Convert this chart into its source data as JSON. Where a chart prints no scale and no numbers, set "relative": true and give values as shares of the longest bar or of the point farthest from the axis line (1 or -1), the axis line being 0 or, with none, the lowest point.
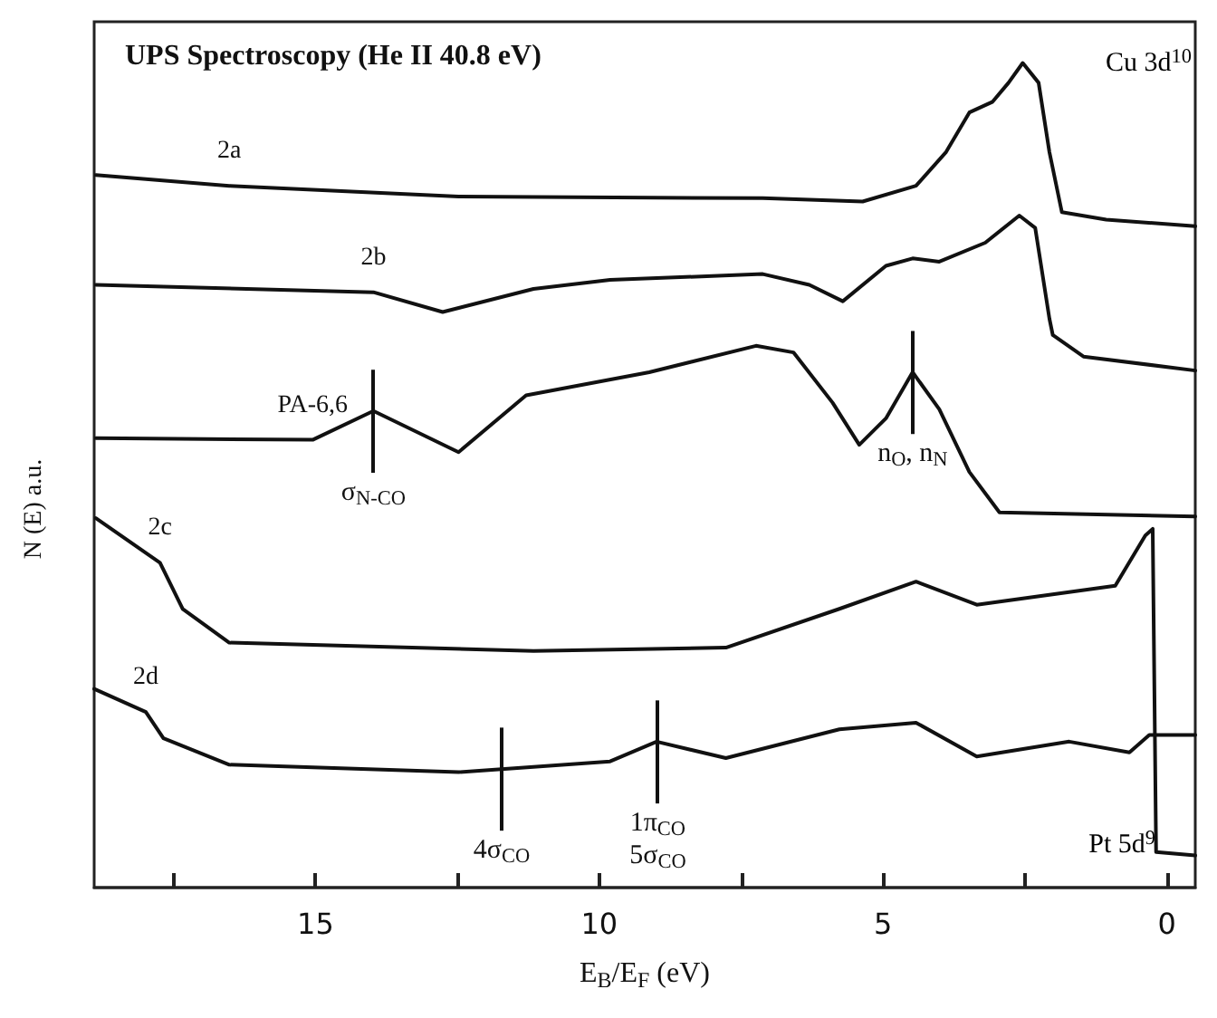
{
  "chart_data": {
    "type": "line",
    "relative": true,
    "title": "UPS Spectroscopy (He II 40.8 eV)",
    "xlabel": "E$_{B}$/E$_{F}$ (eV)",
    "ylabel": "N (E) a.u.",
    "xlim": [
      18.9,
      -0.5
    ],
    "xticks": [
      {
        "value": 17.5,
        "label": null
      },
      15,
      {
        "value": 12.5,
        "label": null
      },
      10,
      {
        "value": 7.5,
        "label": null
      },
      5,
      {
        "value": 2.5,
        "label": null
      },
      0
    ],
    "marker": "none",
    "line_style": "solid",
    "series": [
      {
        "name": "2a",
        "color": "#111111",
        "x": [
          18.87,
          16.52,
          12.48,
          7.12,
          5.36,
          4.42,
          3.89,
          3.48,
          3.07,
          2.79,
          2.54,
          2.26,
          2.07,
          1.85,
          1.07,
          -0.5
        ],
        "values": [
          0.864,
          0.851,
          0.838,
          0.836,
          0.832,
          0.851,
          0.892,
          0.94,
          0.953,
          0.976,
          1.0,
          0.976,
          0.892,
          0.819,
          0.81,
          0.802
        ]
      },
      {
        "name": "2b",
        "color": "#111111",
        "x": [
          18.87,
          13.98,
          12.76,
          11.16,
          9.81,
          7.12,
          6.3,
          5.71,
          4.95,
          4.48,
          4.01,
          3.2,
          2.6,
          2.32,
          2.07,
          2.01,
          1.47,
          -0.5
        ],
        "values": [
          0.731,
          0.722,
          0.698,
          0.726,
          0.737,
          0.744,
          0.731,
          0.711,
          0.754,
          0.763,
          0.759,
          0.782,
          0.815,
          0.8,
          0.69,
          0.67,
          0.644,
          0.627
        ]
      },
      {
        "name": "PA-6,6",
        "color": "#111111",
        "x": [
          18.87,
          15.05,
          13.98,
          12.48,
          11.29,
          9.12,
          7.24,
          6.58,
          5.89,
          5.42,
          4.95,
          4.48,
          4.01,
          3.48,
          2.95,
          -0.5
        ],
        "values": [
          0.545,
          0.543,
          0.578,
          0.528,
          0.597,
          0.625,
          0.657,
          0.649,
          0.588,
          0.537,
          0.569,
          0.625,
          0.58,
          0.504,
          0.455,
          0.45
        ]
      },
      {
        "name": "2c",
        "color": "#111111",
        "x": [
          18.87,
          17.74,
          17.34,
          16.52,
          11.16,
          7.77,
          5.77,
          4.42,
          3.35,
          0.91,
          0.38,
          0.25,
          0.19,
          -0.5
        ],
        "values": [
          0.448,
          0.394,
          0.338,
          0.297,
          0.287,
          0.291,
          0.338,
          0.371,
          0.343,
          0.366,
          0.427,
          0.435,
          0.043,
          0.039
        ]
      },
      {
        "name": "2d",
        "color": "#111111",
        "x": [
          18.9,
          17.99,
          17.68,
          16.52,
          12.48,
          9.81,
          8.99,
          7.77,
          5.77,
          4.42,
          3.35,
          1.72,
          0.66,
          0.31,
          -0.5
        ],
        "values": [
          0.241,
          0.213,
          0.181,
          0.149,
          0.14,
          0.153,
          0.177,
          0.157,
          0.192,
          0.2,
          0.159,
          0.177,
          0.164,
          0.185,
          0.185
        ]
      }
    ],
    "annotations": [
      "Cu 3d$^{10}$",
      "Pt 5d$^{9}$",
      {
        "text": "σ$_{N-CO}$",
        "x": 13.98,
        "y": 0.578
      },
      {
        "text": "n$_{O}$, n$_{N}$",
        "x": 4.48,
        "y": 0.625
      },
      {
        "text": "4σ$_{CO}$",
        "x": 11.72,
        "y": 0.144
      },
      {
        "text": "1π$_{CO}$\n5σ$_{CO}$",
        "x": 8.97,
        "y": 0.177
      }
    ]
  }
}
